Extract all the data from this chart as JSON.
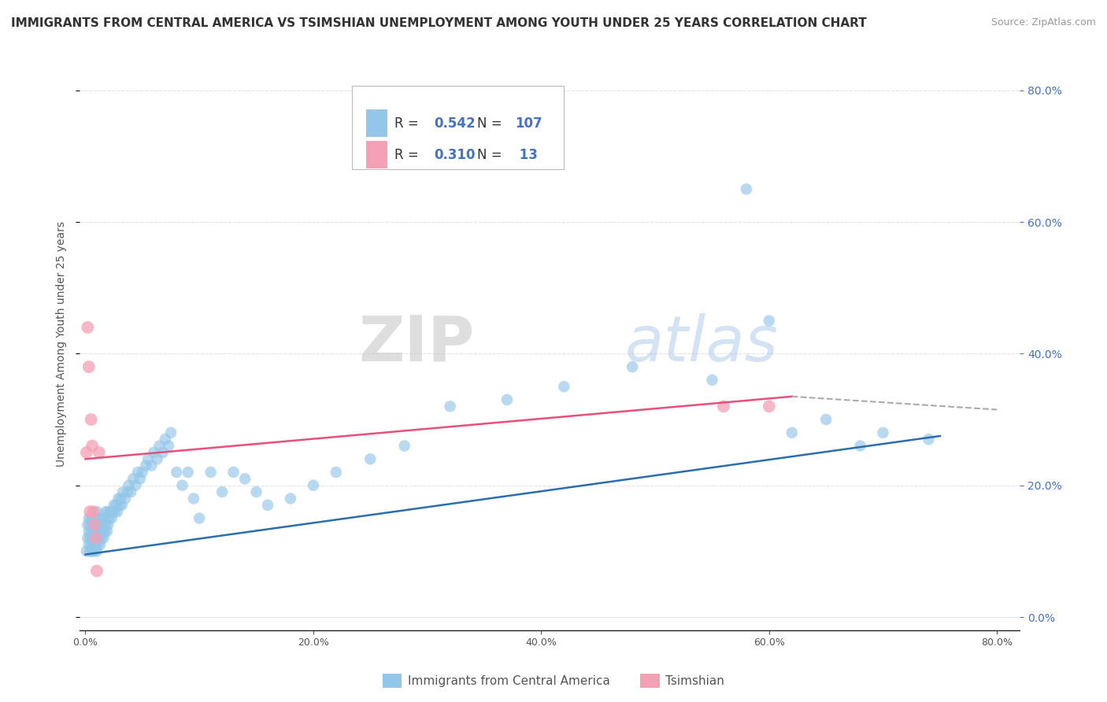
{
  "title": "IMMIGRANTS FROM CENTRAL AMERICA VS TSIMSHIAN UNEMPLOYMENT AMONG YOUTH UNDER 25 YEARS CORRELATION CHART",
  "source": "Source: ZipAtlas.com",
  "ylabel": "Unemployment Among Youth under 25 years",
  "x_tick_values": [
    0.0,
    0.2,
    0.4,
    0.6,
    0.8
  ],
  "y_tick_values": [
    0.0,
    0.2,
    0.4,
    0.6,
    0.8
  ],
  "xlim": [
    -0.005,
    0.82
  ],
  "ylim": [
    -0.02,
    0.85
  ],
  "color_blue": "#93c6e8",
  "color_pink": "#f4a0b5",
  "color_blue_line": "#2a6ead",
  "color_pink_line": "#e8507a",
  "color_dashed": "#aaaaaa",
  "background_color": "#ffffff",
  "grid_color": "#dddddd",
  "title_fontsize": 11,
  "source_fontsize": 9,
  "axis_fontsize": 9,
  "blue_scatter_x": [
    0.001,
    0.002,
    0.002,
    0.003,
    0.003,
    0.003,
    0.004,
    0.004,
    0.004,
    0.005,
    0.005,
    0.005,
    0.006,
    0.006,
    0.006,
    0.007,
    0.007,
    0.007,
    0.008,
    0.008,
    0.008,
    0.009,
    0.009,
    0.01,
    0.01,
    0.01,
    0.01,
    0.011,
    0.011,
    0.011,
    0.012,
    0.012,
    0.013,
    0.013,
    0.014,
    0.014,
    0.015,
    0.015,
    0.016,
    0.016,
    0.017,
    0.017,
    0.018,
    0.018,
    0.019,
    0.02,
    0.02,
    0.021,
    0.022,
    0.023,
    0.024,
    0.025,
    0.026,
    0.027,
    0.028,
    0.029,
    0.03,
    0.031,
    0.032,
    0.033,
    0.035,
    0.037,
    0.038,
    0.04,
    0.042,
    0.044,
    0.046,
    0.048,
    0.05,
    0.053,
    0.055,
    0.058,
    0.06,
    0.063,
    0.065,
    0.068,
    0.07,
    0.073,
    0.075,
    0.08,
    0.085,
    0.09,
    0.095,
    0.1,
    0.11,
    0.12,
    0.13,
    0.14,
    0.15,
    0.16,
    0.18,
    0.2,
    0.22,
    0.25,
    0.28,
    0.32,
    0.37,
    0.42,
    0.48,
    0.55,
    0.58,
    0.6,
    0.62,
    0.65,
    0.68,
    0.7,
    0.74
  ],
  "blue_scatter_y": [
    0.1,
    0.12,
    0.14,
    0.11,
    0.13,
    0.15,
    0.1,
    0.12,
    0.14,
    0.11,
    0.13,
    0.15,
    0.1,
    0.12,
    0.14,
    0.11,
    0.13,
    0.15,
    0.1,
    0.12,
    0.14,
    0.11,
    0.13,
    0.1,
    0.12,
    0.14,
    0.16,
    0.11,
    0.13,
    0.15,
    0.12,
    0.14,
    0.11,
    0.13,
    0.12,
    0.14,
    0.13,
    0.15,
    0.12,
    0.14,
    0.13,
    0.15,
    0.14,
    0.16,
    0.13,
    0.14,
    0.16,
    0.15,
    0.16,
    0.15,
    0.16,
    0.17,
    0.16,
    0.17,
    0.16,
    0.18,
    0.17,
    0.18,
    0.17,
    0.19,
    0.18,
    0.19,
    0.2,
    0.19,
    0.21,
    0.2,
    0.22,
    0.21,
    0.22,
    0.23,
    0.24,
    0.23,
    0.25,
    0.24,
    0.26,
    0.25,
    0.27,
    0.26,
    0.28,
    0.22,
    0.2,
    0.22,
    0.18,
    0.15,
    0.22,
    0.19,
    0.22,
    0.21,
    0.19,
    0.17,
    0.18,
    0.2,
    0.22,
    0.24,
    0.26,
    0.32,
    0.33,
    0.35,
    0.38,
    0.36,
    0.65,
    0.45,
    0.28,
    0.3,
    0.26,
    0.28,
    0.27
  ],
  "pink_scatter_x": [
    0.001,
    0.002,
    0.003,
    0.004,
    0.005,
    0.006,
    0.007,
    0.008,
    0.009,
    0.01,
    0.012,
    0.56,
    0.6
  ],
  "pink_scatter_y": [
    0.25,
    0.44,
    0.38,
    0.16,
    0.3,
    0.26,
    0.16,
    0.14,
    0.12,
    0.07,
    0.25,
    0.32,
    0.32
  ],
  "blue_line_x": [
    0.0,
    0.75
  ],
  "blue_line_y": [
    0.095,
    0.275
  ],
  "pink_line_x": [
    0.0,
    0.62
  ],
  "pink_line_y": [
    0.24,
    0.335
  ],
  "dashed_line_x": [
    0.62,
    0.8
  ],
  "dashed_line_y": [
    0.335,
    0.315
  ],
  "watermark_zip": "ZIP",
  "watermark_atlas": "atlas",
  "legend_r1": "0.542",
  "legend_n1": "107",
  "legend_r2": "0.310",
  "legend_n2": "13",
  "color_r_value": "#4472c4",
  "color_n_value": "#4472c4",
  "color_legend_text": "#333333"
}
